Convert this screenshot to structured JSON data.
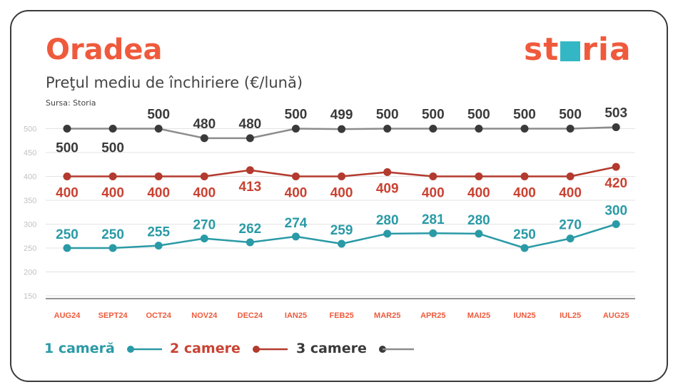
{
  "header": {
    "city": "Oradea",
    "subtitle": "Preţul mediu de închiriere (€/lună)",
    "source": "Sursa: Storia",
    "logo_left": "st",
    "logo_right": "ria"
  },
  "colors": {
    "accent": "#ef5a3c",
    "one_room": "#2a9aa6",
    "two_rooms": "#b33a2e",
    "three_rooms": "#8c8c8c",
    "three_rooms_label": "#3a3a3a",
    "logo_square": "#34b7c4"
  },
  "chart_data": {
    "type": "line",
    "categories": [
      "AUG24",
      "SEPT24",
      "OCT24",
      "NOV24",
      "DEC24",
      "IAN25",
      "FEB25",
      "MAR25",
      "APR25",
      "MAI25",
      "IUN25",
      "IUL25",
      "AUG25"
    ],
    "yticks": [
      150,
      200,
      250,
      300,
      350,
      400,
      450,
      500
    ],
    "ylim": [
      150,
      500
    ],
    "grid": true,
    "legend_position": "bottom",
    "series": [
      {
        "name": "1 cameră",
        "color": "#2a9aa6",
        "values": [
          250,
          250,
          255,
          270,
          262,
          274,
          259,
          280,
          281,
          280,
          250,
          270,
          300
        ]
      },
      {
        "name": "2 camere",
        "color": "#b33a2e",
        "values": [
          400,
          400,
          400,
          400,
          413,
          400,
          400,
          409,
          400,
          400,
          400,
          400,
          420
        ]
      },
      {
        "name": "3 camere",
        "color": "#8c8c8c",
        "values": [
          500,
          500,
          500,
          480,
          480,
          500,
          499,
          500,
          500,
          500,
          500,
          500,
          503
        ]
      }
    ]
  }
}
